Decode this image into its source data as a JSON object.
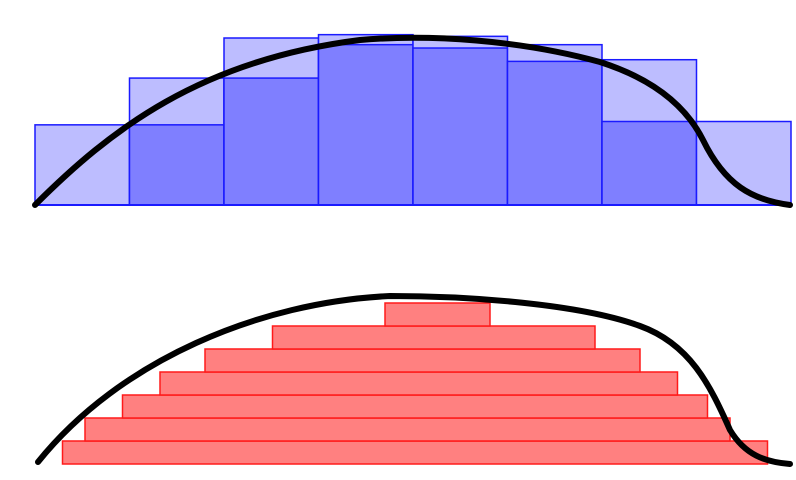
{
  "colors": {
    "background": "#ffffff",
    "curve": "#000000",
    "upper_fill": "#7f7fff",
    "upper_overlay": "#bdbdff",
    "upper_stroke": "#1a1aff",
    "lower_fill": "#ff8080",
    "lower_stroke": "#ff1a1a"
  },
  "upper_panel": {
    "bars": [
      {
        "id": 1,
        "lower": 0.0,
        "upper": 0.48
      },
      {
        "id": 2,
        "lower": 0.48,
        "upper": 0.76
      },
      {
        "id": 3,
        "lower": 0.76,
        "upper": 1.0
      },
      {
        "id": 4,
        "lower": 0.96,
        "upper": 1.02
      },
      {
        "id": 5,
        "lower": 0.94,
        "upper": 1.01
      },
      {
        "id": 6,
        "lower": 0.86,
        "upper": 0.96
      },
      {
        "id": 7,
        "lower": 0.5,
        "upper": 0.87
      },
      {
        "id": 8,
        "lower": 0.0,
        "upper": 0.5
      }
    ]
  },
  "lower_panel": {
    "layers": [
      {
        "id": 1,
        "start": 0.03,
        "end": 0.97
      },
      {
        "id": 2,
        "start": 0.06,
        "end": 0.92
      },
      {
        "id": 3,
        "start": 0.11,
        "end": 0.89
      },
      {
        "id": 4,
        "start": 0.16,
        "end": 0.85
      },
      {
        "id": 5,
        "start": 0.22,
        "end": 0.8
      },
      {
        "id": 6,
        "start": 0.31,
        "end": 0.74
      },
      {
        "id": 7,
        "start": 0.46,
        "end": 0.6
      }
    ]
  }
}
